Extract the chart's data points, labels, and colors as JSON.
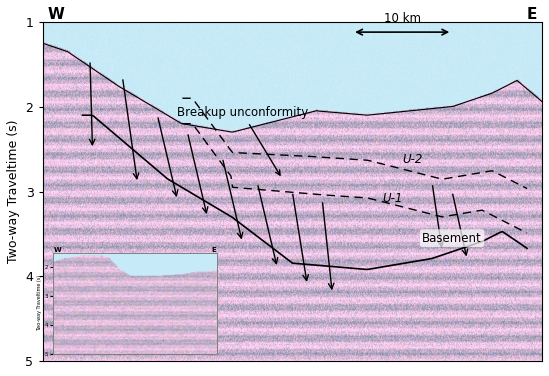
{
  "title": "",
  "ylabel": "Two-way Traveltime (s)",
  "xlabel": "",
  "ylim": [
    1,
    5
  ],
  "xlim": [
    0,
    1
  ],
  "yticks": [
    1,
    2,
    3,
    4,
    5
  ],
  "bg_color": "#c8eef8",
  "label_W": "W",
  "label_E": "E",
  "scale_bar_text": "10 km",
  "annotation_breakup": "Breakup unconformity",
  "annotation_U2": "U-2",
  "annotation_U1": "U-1",
  "annotation_basement": "Basement",
  "font_size_labels": 11,
  "font_size_annotations": 9,
  "arrow_color": "#000000",
  "sky_color": [
    0.78,
    0.92,
    0.97
  ],
  "base_rgb": [
    0.83,
    0.72,
    0.83
  ]
}
